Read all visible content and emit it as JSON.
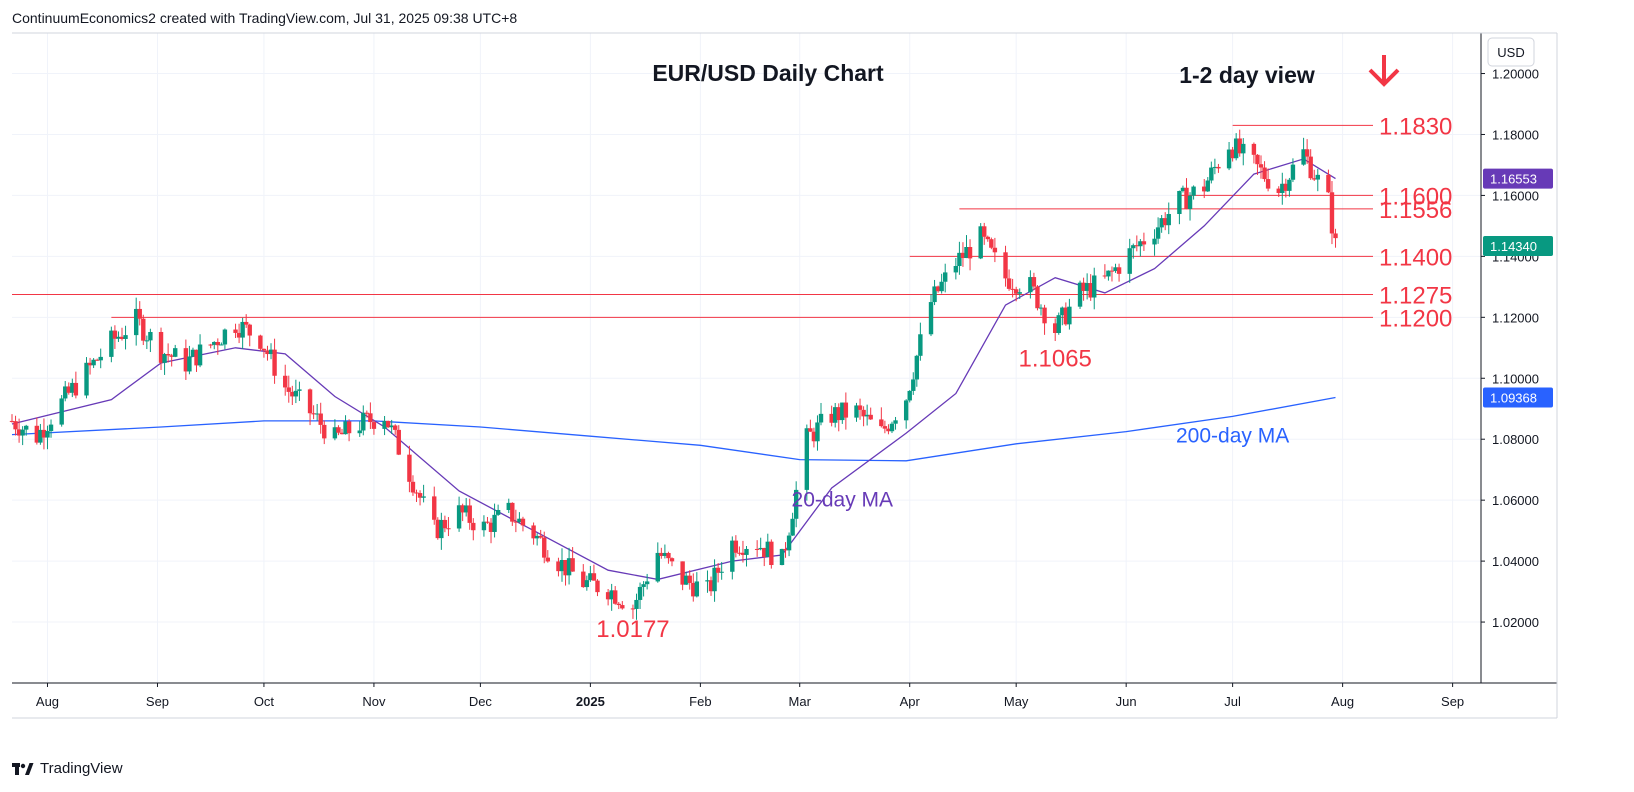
{
  "header": {
    "attribution": "ContinuumEconomics2 created with TradingView.com, Jul 31, 2025 09:38 UTC+8"
  },
  "footer": {
    "brand": "TradingView"
  },
  "colors": {
    "up": "#089981",
    "down": "#f23645",
    "ma20": "#673ab7",
    "ma200": "#2962ff",
    "level": "#f23645",
    "grid": "#f0f3fa",
    "text": "#131722"
  },
  "chart_data": {
    "type": "candlestick",
    "title": "EUR/USD Daily Chart",
    "subtitle": "1-2 day view",
    "direction_icon": "down-arrow-icon",
    "currency": "USD",
    "ylim": [
      1.0,
      1.2133
    ],
    "y_ticks": [
      "1.02000",
      "1.04000",
      "1.06000",
      "1.08000",
      "1.10000",
      "1.12000",
      "1.14000",
      "1.16000",
      "1.18000",
      "1.20000"
    ],
    "x_ticks": [
      {
        "label": "Aug",
        "date": "2024-08-01"
      },
      {
        "label": "Sep",
        "date": "2024-09-01"
      },
      {
        "label": "Oct",
        "date": "2024-10-01"
      },
      {
        "label": "Nov",
        "date": "2024-11-01"
      },
      {
        "label": "Dec",
        "date": "2024-12-01"
      },
      {
        "label": "2025",
        "date": "2025-01-01",
        "bold": true
      },
      {
        "label": "Feb",
        "date": "2025-02-01"
      },
      {
        "label": "Mar",
        "date": "2025-03-01"
      },
      {
        "label": "Apr",
        "date": "2025-04-01"
      },
      {
        "label": "May",
        "date": "2025-05-01"
      },
      {
        "label": "Jun",
        "date": "2025-06-01"
      },
      {
        "label": "Jul",
        "date": "2025-07-01"
      },
      {
        "label": "Aug",
        "date": "2025-08-01"
      },
      {
        "label": "Sep",
        "date": "2025-09-01"
      }
    ],
    "price_tags": [
      {
        "label": "1.16553",
        "value": 1.16553,
        "color": "#673ab7"
      },
      {
        "label": "1.14340",
        "value": 1.1434,
        "color": "#089981"
      },
      {
        "label": "1.09368",
        "value": 1.09368,
        "color": "#2962ff"
      }
    ],
    "levels": [
      {
        "label": "1.1830",
        "value": 1.183,
        "from": "2025-07-01"
      },
      {
        "label": "1.1600",
        "value": 1.16,
        "from": "2025-06-16"
      },
      {
        "label": "1.1556",
        "value": 1.1556,
        "from": "2025-04-15"
      },
      {
        "label": "1.1400",
        "value": 1.14,
        "from": "2025-04-01"
      },
      {
        "label": "1.1275",
        "value": 1.1275,
        "from": "2024-07-22"
      },
      {
        "label": "1.1200",
        "value": 1.12,
        "from": "2024-08-19"
      }
    ],
    "annotations": [
      {
        "text": "1.1065",
        "date": "2025-05-12",
        "value": 1.1065,
        "color": "#f23645"
      },
      {
        "text": "1.0177",
        "date": "2025-01-13",
        "value": 1.0177,
        "color": "#f23645"
      },
      {
        "text": "20-day MA",
        "date": "2025-03-13",
        "value": 1.0605,
        "color": "#673ab7"
      },
      {
        "text": "200-day MA",
        "date": "2025-07-01",
        "value": 1.0815,
        "color": "#2962ff"
      }
    ],
    "series_path": [
      [
        "2024-07-22",
        1.086
      ],
      [
        "2024-07-29",
        1.081
      ],
      [
        "2024-08-05",
        1.092
      ],
      [
        "2024-08-12",
        1.102
      ],
      [
        "2024-08-19",
        1.112
      ],
      [
        "2024-08-26",
        1.119
      ],
      [
        "2024-09-02",
        1.109
      ],
      [
        "2024-09-09",
        1.105
      ],
      [
        "2024-09-16",
        1.111
      ],
      [
        "2024-09-23",
        1.118
      ],
      [
        "2024-09-30",
        1.113
      ],
      [
        "2024-10-07",
        1.097
      ],
      [
        "2024-10-14",
        1.089
      ],
      [
        "2024-10-21",
        1.08
      ],
      [
        "2024-10-28",
        1.085
      ],
      [
        "2024-11-04",
        1.088
      ],
      [
        "2024-11-11",
        1.069
      ],
      [
        "2024-11-18",
        1.05
      ],
      [
        "2024-11-25",
        1.056
      ],
      [
        "2024-12-02",
        1.051
      ],
      [
        "2024-12-09",
        1.056
      ],
      [
        "2024-12-16",
        1.049
      ],
      [
        "2024-12-23",
        1.04
      ],
      [
        "2024-12-30",
        1.033
      ],
      [
        "2025-01-06",
        1.031
      ],
      [
        "2025-01-13",
        1.025
      ],
      [
        "2025-01-20",
        1.043
      ],
      [
        "2025-01-27",
        1.034
      ],
      [
        "2025-02-03",
        1.03
      ],
      [
        "2025-02-10",
        1.046
      ],
      [
        "2025-02-17",
        1.046
      ],
      [
        "2025-02-24",
        1.04
      ],
      [
        "2025-03-03",
        1.08
      ],
      [
        "2025-03-10",
        1.088
      ],
      [
        "2025-03-17",
        1.089
      ],
      [
        "2025-03-24",
        1.082
      ],
      [
        "2025-03-31",
        1.094
      ],
      [
        "2025-04-07",
        1.125
      ],
      [
        "2025-04-14",
        1.138
      ],
      [
        "2025-04-21",
        1.146
      ],
      [
        "2025-04-28",
        1.133
      ],
      [
        "2025-05-05",
        1.13
      ],
      [
        "2025-05-12",
        1.116
      ],
      [
        "2025-05-19",
        1.128
      ],
      [
        "2025-05-26",
        1.132
      ],
      [
        "2025-06-02",
        1.141
      ],
      [
        "2025-06-09",
        1.149
      ],
      [
        "2025-06-16",
        1.158
      ],
      [
        "2025-06-23",
        1.163
      ],
      [
        "2025-06-30",
        1.177
      ],
      [
        "2025-07-07",
        1.17
      ],
      [
        "2025-07-14",
        1.162
      ],
      [
        "2025-07-21",
        1.174
      ],
      [
        "2025-07-28",
        1.158
      ],
      [
        "2025-07-30",
        1.1434
      ]
    ],
    "ma20_path": [
      [
        "2024-07-22",
        1.085
      ],
      [
        "2024-08-19",
        1.093
      ],
      [
        "2024-09-02",
        1.105
      ],
      [
        "2024-09-23",
        1.11
      ],
      [
        "2024-10-07",
        1.108
      ],
      [
        "2024-10-21",
        1.094
      ],
      [
        "2024-11-04",
        1.084
      ],
      [
        "2024-11-25",
        1.063
      ],
      [
        "2024-12-16",
        1.05
      ],
      [
        "2025-01-06",
        1.037
      ],
      [
        "2025-01-20",
        1.034
      ],
      [
        "2025-02-10",
        1.04
      ],
      [
        "2025-02-24",
        1.042
      ],
      [
        "2025-03-10",
        1.064
      ],
      [
        "2025-03-31",
        1.082
      ],
      [
        "2025-04-14",
        1.095
      ],
      [
        "2025-04-28",
        1.124
      ],
      [
        "2025-05-12",
        1.133
      ],
      [
        "2025-05-26",
        1.128
      ],
      [
        "2025-06-09",
        1.136
      ],
      [
        "2025-06-23",
        1.15
      ],
      [
        "2025-07-07",
        1.167
      ],
      [
        "2025-07-21",
        1.172
      ],
      [
        "2025-07-30",
        1.16553
      ]
    ],
    "ma200_path": [
      [
        "2024-07-22",
        1.0815
      ],
      [
        "2024-09-02",
        1.084
      ],
      [
        "2024-10-01",
        1.086
      ],
      [
        "2024-11-01",
        1.086
      ],
      [
        "2024-12-01",
        1.084
      ],
      [
        "2025-01-01",
        1.081
      ],
      [
        "2025-02-01",
        1.078
      ],
      [
        "2025-03-01",
        1.0733
      ],
      [
        "2025-03-31",
        1.0729
      ],
      [
        "2025-05-01",
        1.0785
      ],
      [
        "2025-06-01",
        1.0825
      ],
      [
        "2025-07-01",
        1.0875
      ],
      [
        "2025-07-30",
        1.09368
      ]
    ],
    "x_start": "2024-07-22",
    "x_end": "2025-09-09"
  }
}
